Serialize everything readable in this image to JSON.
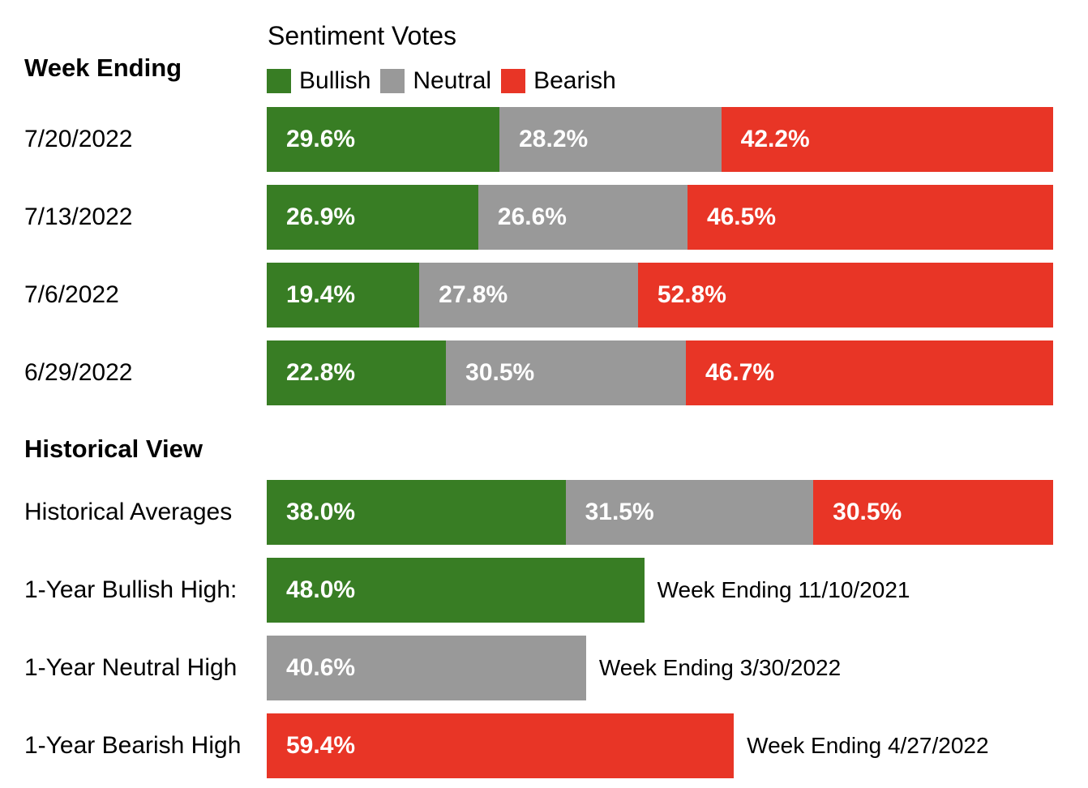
{
  "colors": {
    "bullish": "#387d24",
    "neutral": "#999999",
    "bearish": "#e83526"
  },
  "chart_data": {
    "type": "bar",
    "stacked": true,
    "orientation": "horizontal",
    "title": "Sentiment Votes",
    "legend": [
      "Bullish",
      "Neutral",
      "Bearish"
    ],
    "legend_placement": "top",
    "xlim": [
      0,
      100
    ],
    "week_section_title": "Week Ending",
    "weeks": [
      {
        "label": "7/20/2022",
        "bullish": 29.6,
        "neutral": 28.2,
        "bearish": 42.2
      },
      {
        "label": "7/13/2022",
        "bullish": 26.9,
        "neutral": 26.6,
        "bearish": 46.5
      },
      {
        "label": "7/6/2022",
        "bullish": 19.4,
        "neutral": 27.8,
        "bearish": 52.8
      },
      {
        "label": "6/29/2022",
        "bullish": 22.8,
        "neutral": 30.5,
        "bearish": 46.7
      }
    ],
    "historical_section_title": "Historical View",
    "historical_averages": {
      "label": "Historical Averages",
      "bullish": 38.0,
      "neutral": 31.5,
      "bearish": 30.5
    },
    "highs": [
      {
        "label": "1-Year Bullish High:",
        "type": "bullish",
        "value": 48.0,
        "note": "Week Ending 11/10/2021"
      },
      {
        "label": "1-Year Neutral High",
        "type": "neutral",
        "value": 40.6,
        "note": "Week Ending 3/30/2022"
      },
      {
        "label": "1-Year Bearish High",
        "type": "bearish",
        "value": 59.4,
        "note": "Week Ending 4/27/2022"
      }
    ]
  }
}
